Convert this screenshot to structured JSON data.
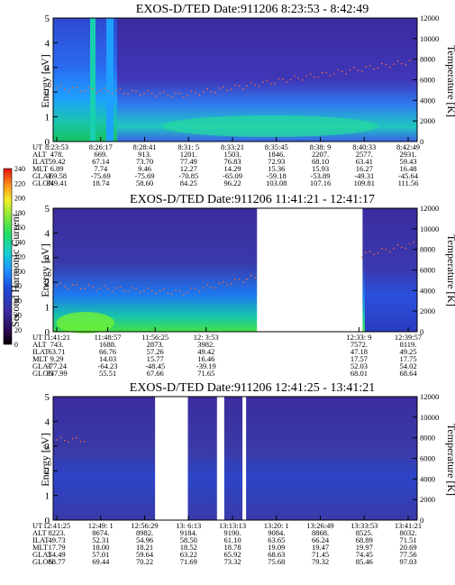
{
  "chart_data": {
    "type": "heatmap",
    "colorbar": {
      "label": "Second Harmonic Current",
      "ticks": [
        "0",
        "20",
        "40",
        "60",
        "80",
        "100",
        "120",
        "140",
        "160",
        "180",
        "200",
        "220",
        "240"
      ]
    },
    "panels": [
      {
        "title": "EXOS-D/TED   Date:911206  8:23:53 - 8:42:49",
        "ylabel_left": "Energy [eV]",
        "ylabel_right": "Temperature [K]",
        "ylim": [
          0,
          5
        ],
        "yticks": [
          "0",
          "1",
          "2",
          "3",
          "4",
          "5"
        ],
        "ylim_right": [
          0,
          12000
        ],
        "yticks_right": [
          "0",
          "2000",
          "4000",
          "6000",
          "8000",
          "10000",
          "12000"
        ],
        "row_labels": [
          "UT",
          "ALT",
          "ILAT",
          "MLT",
          "GLAT",
          "GLON"
        ],
        "columns": [
          [
            "8:23:53",
            "478.",
            "59.42",
            "6.89",
            "-69.58",
            "349.41"
          ],
          [
            "8:26:17",
            "669.",
            "67.14",
            "7.74",
            "-75.69",
            "18.74"
          ],
          [
            "8:28:41",
            "913.",
            "73.70",
            "9.46",
            "-75.69",
            "58.60"
          ],
          [
            "8:31: 5",
            "1201.",
            "77.49",
            "12.27",
            "-70.85",
            "84.25"
          ],
          [
            "8:33:21",
            "1503.",
            "76.83",
            "14.29",
            "-65.09",
            "96.22"
          ],
          [
            "8:35:45",
            "1846.",
            "72.93",
            "15.36",
            "-59.18",
            "103.08"
          ],
          [
            "8:38: 9",
            "2207.",
            "68.10",
            "15.93",
            "-53.89",
            "107.16"
          ],
          [
            "8:40:33",
            "2577.",
            "63.41",
            "16.27",
            "-49.31",
            "109.81"
          ],
          [
            "8:42:49",
            "2931.",
            "59.43",
            "16.48",
            "-45.64",
            "111.56"
          ]
        ],
        "temperature_trace": {
          "start": 5200,
          "dip": 4500,
          "end": 7800
        },
        "gaps": []
      },
      {
        "title": "EXOS-D/TED   Date:911206  11:41:21 - 12:41:17",
        "ylabel_left": "Energy [eV]",
        "ylabel_right": "Temperature [K]",
        "ylim": [
          0,
          5
        ],
        "yticks": [
          "0",
          "1",
          "2",
          "3",
          "4",
          "5"
        ],
        "ylim_right": [
          0,
          12000
        ],
        "yticks_right": [
          "0",
          "2000",
          "4000",
          "6000",
          "8000",
          "10000",
          "12000"
        ],
        "row_labels": [
          "UT",
          "ALT",
          "ILAT",
          "MLT",
          "GLAT",
          "GLON"
        ],
        "columns": [
          [
            "11:41:21",
            "743.",
            "63.71",
            "9.29",
            "-77.24",
            "337.99"
          ],
          [
            "11:48:57",
            "1688.",
            "66.76",
            "14.03",
            "-64.23",
            "55.51"
          ],
          [
            "11:56:25",
            "2873.",
            "57.26",
            "15.77",
            "-48.45",
            "67.66"
          ],
          [
            "12: 3:53",
            "3982.",
            "49.42",
            "16.46",
            "-39.19",
            "71.65"
          ],
          [
            "12:33: 9",
            "7572.",
            "47.18",
            "17.57",
            "52.03",
            "68.01"
          ],
          [
            "12:39:57",
            "8119.",
            "49.25",
            "17.75",
            "54.02",
            "68.64"
          ]
        ],
        "temperature_trace": {
          "start": 4500,
          "dip": 3800,
          "end": 8500
        },
        "gaps": [
          [
            0.56,
            0.85
          ]
        ]
      },
      {
        "title": "EXOS-D/TED   Date:911206  12:41:25 - 13:41:21",
        "ylabel_left": "Energy [eV]",
        "ylabel_right": "Temperature [K]",
        "ylim": [
          0,
          5
        ],
        "yticks": [
          "0",
          "1",
          "2",
          "3",
          "4",
          "5"
        ],
        "ylim_right": [
          0,
          12000
        ],
        "yticks_right": [
          "0",
          "2000",
          "4000",
          "6000",
          "8000",
          "10000",
          "12000"
        ],
        "row_labels": [
          "UT",
          "ALT",
          "ILAT",
          "MLT",
          "GLAT",
          "GLON"
        ],
        "columns": [
          [
            "12:41:25",
            "8223.",
            "49.73",
            "17.79",
            "54.49",
            "68.77"
          ],
          [
            "12:49: 1",
            "8674.",
            "52.31",
            "18.00",
            "57.01",
            "69.44"
          ],
          [
            "12:56:29",
            "8982.",
            "54.96",
            "18.21",
            "59.64",
            "70.22"
          ],
          [
            "13: 6:13",
            "9184.",
            "58.50",
            "18.52",
            "63.22",
            "71.69"
          ],
          [
            "13:13:13",
            "9190.",
            "61.10",
            "18.78",
            "65.92",
            "73.32"
          ],
          [
            "13:20: 1",
            "9084.",
            "63.65",
            "19.09",
            "68.63",
            "75.68"
          ],
          [
            "13:26:49",
            "8868.",
            "66.24",
            "19.47",
            "71.45",
            "79.32"
          ],
          [
            "13:33:53",
            "8525.",
            "68.89",
            "19.97",
            "74.45",
            "85.46"
          ],
          [
            "13:41:21",
            "8032.",
            "71.51",
            "20.69",
            "77.56",
            "97.03"
          ]
        ],
        "temperature_trace": {
          "start": 7800,
          "dip": 7800,
          "end": 7800
        },
        "gaps": [
          [
            0.28,
            0.37
          ],
          [
            0.45,
            0.47
          ],
          [
            0.52,
            0.53
          ]
        ]
      }
    ]
  }
}
